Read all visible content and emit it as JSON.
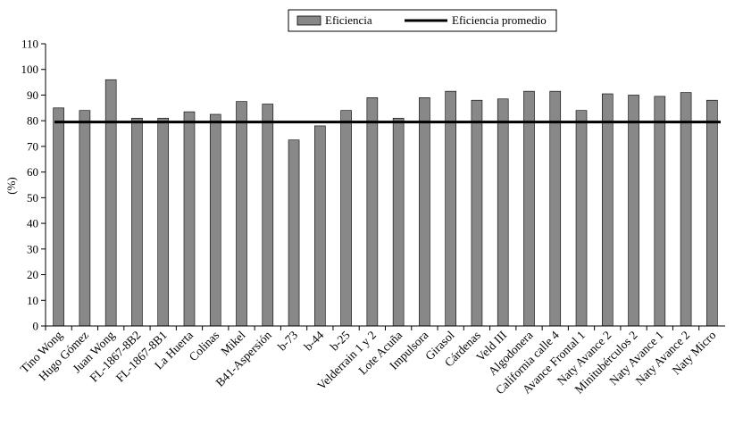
{
  "chart_data": {
    "type": "bar",
    "title": "",
    "xlabel": "",
    "ylabel": "(%)",
    "ylim": [
      0,
      110
    ],
    "yticks": [
      0,
      10,
      20,
      30,
      40,
      50,
      60,
      70,
      80,
      90,
      100,
      110
    ],
    "grid": false,
    "legend_position": "top",
    "categories": [
      "Tino Wong",
      "Hugo Gómez",
      "Juan Wong",
      "FL-1867-8B2",
      "FL-1867-8B1",
      "La Huerta",
      "Colinas",
      "Mikel",
      "B41-Aspersión",
      "b-73",
      "b-44",
      "b-25",
      "Velderrain 1 y 2",
      "Lote Acuña",
      "Impulsora",
      "Girasol",
      "Cárdenas",
      "Veld III",
      "Algodonera",
      "California calle 4",
      "Avance Frontal 1",
      "Naty Avance 2",
      "Minitubérculos 2",
      "Naty Avance 1",
      "Naty Avance 2",
      "Naty Micro"
    ],
    "series": [
      {
        "name": "Eficiencia",
        "type": "bar",
        "color": "#888888",
        "values": [
          85,
          84,
          96,
          81,
          81,
          83.5,
          82.5,
          87.5,
          86.5,
          72.5,
          78,
          84,
          89,
          81,
          89,
          91.5,
          88,
          88.5,
          91.5,
          91.5,
          84,
          90.5,
          90,
          89.5,
          91,
          88
        ]
      },
      {
        "name": "Eficiencia promedio",
        "type": "line",
        "color": "#000000",
        "value": 79.5
      }
    ]
  }
}
